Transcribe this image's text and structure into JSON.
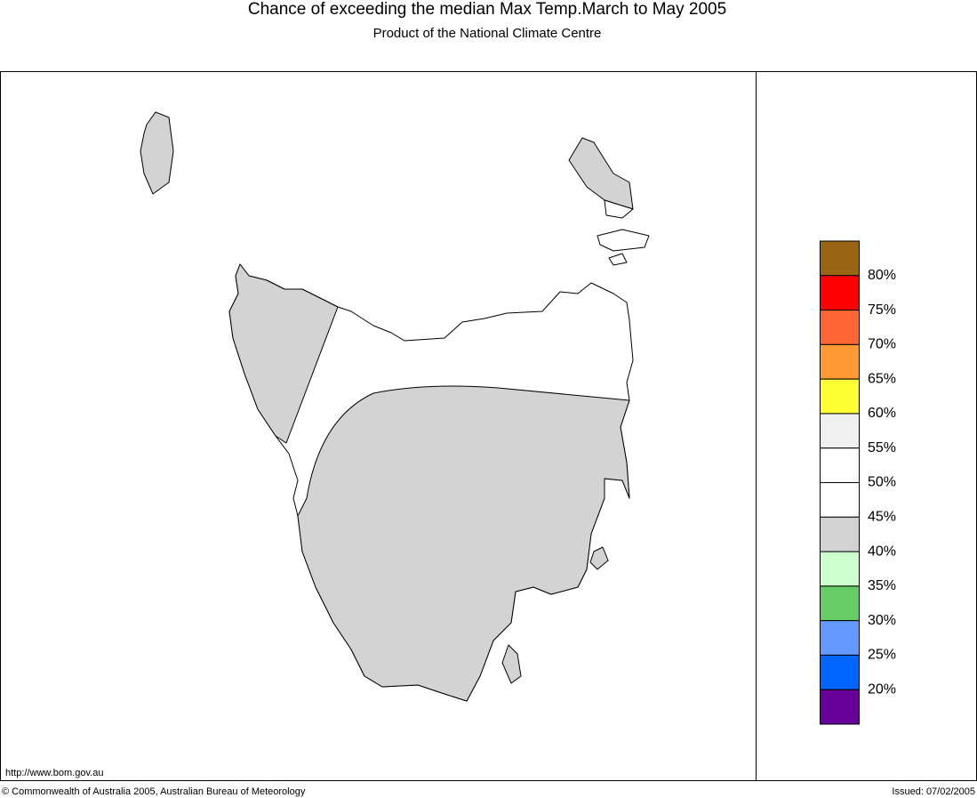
{
  "header": {
    "title": "Chance of exceeding the median Max Temp.March to May 2005",
    "subtitle": "Product of the National Climate Centre"
  },
  "legend": {
    "colors": [
      "#996515",
      "#ff0000",
      "#ff6633",
      "#ff9933",
      "#ffff33",
      "#f0f0f0",
      "#ffffff",
      "#ffffff",
      "#d3d3d3",
      "#ccffcc",
      "#66cc66",
      "#6699ff",
      "#0066ff",
      "#660099"
    ],
    "labels": [
      "80%",
      "75%",
      "70%",
      "65%",
      "60%",
      "55%",
      "50%",
      "45%",
      "40%",
      "35%",
      "30%",
      "25%",
      "20%"
    ]
  },
  "footer": {
    "url": "http://www.bom.gov.au",
    "copyright": "© Commonwealth of Australia 2005, Australian Bureau of Meteorology",
    "issued": "Issued: 07/02/2005"
  }
}
